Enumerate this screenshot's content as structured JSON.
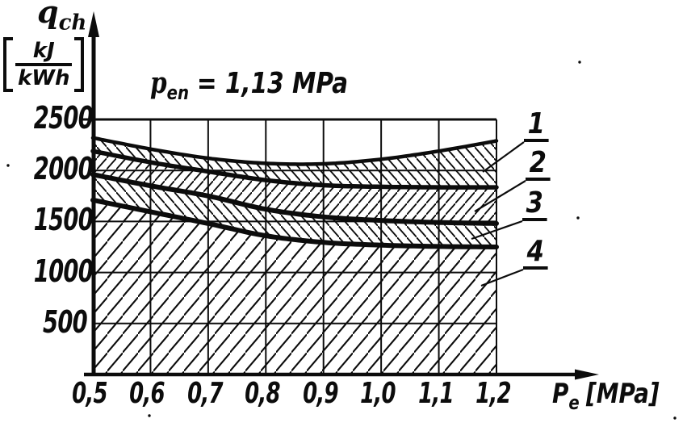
{
  "colors": {
    "ink": "#0c0c0c",
    "background": "#ffffff"
  },
  "labels": {
    "y_symbol": "q",
    "y_symbol_sub": "ch",
    "unit_numerator": "kJ",
    "unit_denominator": "kWh",
    "annotation_symbol": "p",
    "annotation_sub": "en",
    "annotation_value": "= 1,13 MPa",
    "x_symbol": "P",
    "x_sub": "e",
    "x_units": "[MPa]",
    "curve_labels": [
      "1",
      "2",
      "3",
      "4"
    ]
  },
  "chart_data": {
    "type": "area",
    "title": "p_en = 1,13 MPa",
    "xlabel": "Pe [MPa]",
    "ylabel": "q_ch [kJ/kWh]",
    "x": [
      0.5,
      0.6,
      0.7,
      0.8,
      0.9,
      1.0,
      1.1,
      1.2
    ],
    "x_tick_labels": [
      "0,5",
      "0,6",
      "0,7",
      "0,8",
      "0,9",
      "1,0",
      "1,1",
      "1,2"
    ],
    "y_ticks": [
      500,
      1000,
      1500,
      2000,
      2500
    ],
    "y_tick_labels": [
      "500",
      "1000",
      "1500",
      "2000",
      "2500"
    ],
    "xlim": [
      0.5,
      1.2
    ],
    "ylim": [
      0,
      2500
    ],
    "grid": true,
    "legend_position": "none",
    "series": [
      {
        "name": "1",
        "values": [
          2320,
          2210,
          2120,
          2070,
          2065,
          2110,
          2190,
          2290
        ]
      },
      {
        "name": "2",
        "values": [
          2190,
          2080,
          1990,
          1905,
          1855,
          1840,
          1835,
          1835
        ]
      },
      {
        "name": "3",
        "values": [
          1960,
          1850,
          1750,
          1620,
          1545,
          1510,
          1490,
          1480
        ]
      },
      {
        "name": "4",
        "values": [
          1710,
          1595,
          1480,
          1360,
          1295,
          1268,
          1255,
          1250
        ]
      }
    ],
    "bands": [
      {
        "label": "1",
        "upper": "1",
        "lower": "2",
        "hatch": "back"
      },
      {
        "label": "2",
        "upper": "2",
        "lower": "3",
        "hatch": "fwd"
      },
      {
        "label": "3",
        "upper": "3",
        "lower": "4",
        "hatch": "back"
      },
      {
        "label": "4",
        "upper": "4",
        "lower": "baseline",
        "hatch": "fwd-wide"
      }
    ]
  }
}
